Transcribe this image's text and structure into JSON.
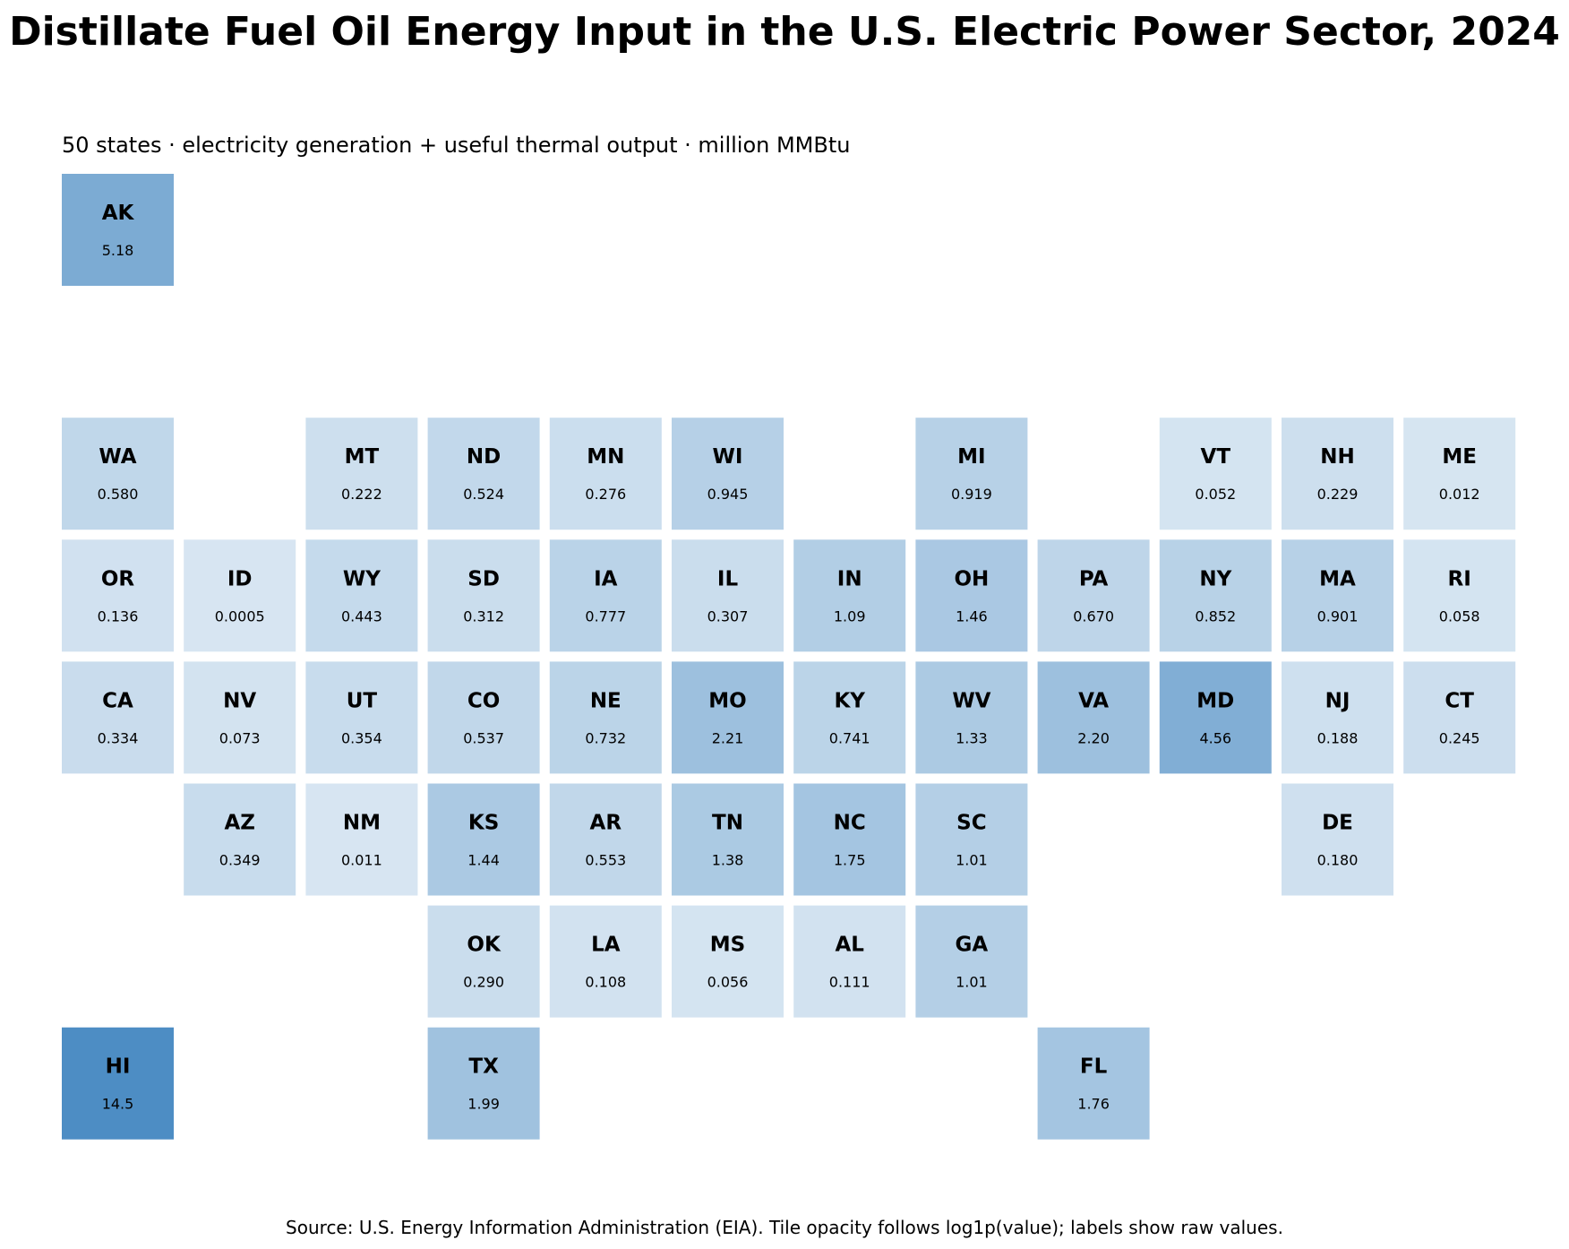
{
  "chart_data": {
    "type": "tile-map",
    "title": "Distillate Fuel Oil Energy Input in the U.S. Electric Power Sector, 2024",
    "subtitle": "50 states · electricity generation + useful thermal output · million MMBtu",
    "source": "Source: U.S. Energy Information Administration (EIA). Tile opacity follows log1p(value); labels show raw values.",
    "color": "#2171b5",
    "color_scale": "log1p",
    "tiles": [
      {
        "state": "AK",
        "value": 5.18,
        "label": "5.18",
        "col": 0,
        "row": 0
      },
      {
        "state": "WA",
        "value": 0.58,
        "label": "0.580",
        "col": 0,
        "row": 2
      },
      {
        "state": "MT",
        "value": 0.222,
        "label": "0.222",
        "col": 2,
        "row": 2
      },
      {
        "state": "ND",
        "value": 0.524,
        "label": "0.524",
        "col": 3,
        "row": 2
      },
      {
        "state": "MN",
        "value": 0.276,
        "label": "0.276",
        "col": 4,
        "row": 2
      },
      {
        "state": "WI",
        "value": 0.945,
        "label": "0.945",
        "col": 5,
        "row": 2
      },
      {
        "state": "MI",
        "value": 0.919,
        "label": "0.919",
        "col": 7,
        "row": 2
      },
      {
        "state": "VT",
        "value": 0.052,
        "label": "0.052",
        "col": 9,
        "row": 2
      },
      {
        "state": "NH",
        "value": 0.229,
        "label": "0.229",
        "col": 10,
        "row": 2
      },
      {
        "state": "ME",
        "value": 0.012,
        "label": "0.012",
        "col": 11,
        "row": 2
      },
      {
        "state": "OR",
        "value": 0.136,
        "label": "0.136",
        "col": 0,
        "row": 3
      },
      {
        "state": "ID",
        "value": 0.0005,
        "label": "0.0005",
        "col": 1,
        "row": 3
      },
      {
        "state": "WY",
        "value": 0.443,
        "label": "0.443",
        "col": 2,
        "row": 3
      },
      {
        "state": "SD",
        "value": 0.312,
        "label": "0.312",
        "col": 3,
        "row": 3
      },
      {
        "state": "IA",
        "value": 0.777,
        "label": "0.777",
        "col": 4,
        "row": 3
      },
      {
        "state": "IL",
        "value": 0.307,
        "label": "0.307",
        "col": 5,
        "row": 3
      },
      {
        "state": "IN",
        "value": 1.09,
        "label": "1.09",
        "col": 6,
        "row": 3
      },
      {
        "state": "OH",
        "value": 1.46,
        "label": "1.46",
        "col": 7,
        "row": 3
      },
      {
        "state": "PA",
        "value": 0.67,
        "label": "0.670",
        "col": 8,
        "row": 3
      },
      {
        "state": "NY",
        "value": 0.852,
        "label": "0.852",
        "col": 9,
        "row": 3
      },
      {
        "state": "MA",
        "value": 0.901,
        "label": "0.901",
        "col": 10,
        "row": 3
      },
      {
        "state": "RI",
        "value": 0.058,
        "label": "0.058",
        "col": 11,
        "row": 3
      },
      {
        "state": "CA",
        "value": 0.334,
        "label": "0.334",
        "col": 0,
        "row": 4
      },
      {
        "state": "NV",
        "value": 0.073,
        "label": "0.073",
        "col": 1,
        "row": 4
      },
      {
        "state": "UT",
        "value": 0.354,
        "label": "0.354",
        "col": 2,
        "row": 4
      },
      {
        "state": "CO",
        "value": 0.537,
        "label": "0.537",
        "col": 3,
        "row": 4
      },
      {
        "state": "NE",
        "value": 0.732,
        "label": "0.732",
        "col": 4,
        "row": 4
      },
      {
        "state": "MO",
        "value": 2.21,
        "label": "2.21",
        "col": 5,
        "row": 4
      },
      {
        "state": "KY",
        "value": 0.741,
        "label": "0.741",
        "col": 6,
        "row": 4
      },
      {
        "state": "WV",
        "value": 1.33,
        "label": "1.33",
        "col": 7,
        "row": 4
      },
      {
        "state": "VA",
        "value": 2.2,
        "label": "2.20",
        "col": 8,
        "row": 4
      },
      {
        "state": "MD",
        "value": 4.56,
        "label": "4.56",
        "col": 9,
        "row": 4
      },
      {
        "state": "NJ",
        "value": 0.188,
        "label": "0.188",
        "col": 10,
        "row": 4
      },
      {
        "state": "CT",
        "value": 0.245,
        "label": "0.245",
        "col": 11,
        "row": 4
      },
      {
        "state": "AZ",
        "value": 0.349,
        "label": "0.349",
        "col": 1,
        "row": 5
      },
      {
        "state": "NM",
        "value": 0.011,
        "label": "0.011",
        "col": 2,
        "row": 5
      },
      {
        "state": "KS",
        "value": 1.44,
        "label": "1.44",
        "col": 3,
        "row": 5
      },
      {
        "state": "AR",
        "value": 0.553,
        "label": "0.553",
        "col": 4,
        "row": 5
      },
      {
        "state": "TN",
        "value": 1.38,
        "label": "1.38",
        "col": 5,
        "row": 5
      },
      {
        "state": "NC",
        "value": 1.75,
        "label": "1.75",
        "col": 6,
        "row": 5
      },
      {
        "state": "SC",
        "value": 1.01,
        "label": "1.01",
        "col": 7,
        "row": 5
      },
      {
        "state": "DE",
        "value": 0.18,
        "label": "0.180",
        "col": 10,
        "row": 5
      },
      {
        "state": "OK",
        "value": 0.29,
        "label": "0.290",
        "col": 3,
        "row": 6
      },
      {
        "state": "LA",
        "value": 0.108,
        "label": "0.108",
        "col": 4,
        "row": 6
      },
      {
        "state": "MS",
        "value": 0.056,
        "label": "0.056",
        "col": 5,
        "row": 6
      },
      {
        "state": "AL",
        "value": 0.111,
        "label": "0.111",
        "col": 6,
        "row": 6
      },
      {
        "state": "GA",
        "value": 1.01,
        "label": "1.01",
        "col": 7,
        "row": 6
      },
      {
        "state": "HI",
        "value": 14.5,
        "label": "14.5",
        "col": 0,
        "row": 7
      },
      {
        "state": "TX",
        "value": 1.99,
        "label": "1.99",
        "col": 3,
        "row": 7
      },
      {
        "state": "FL",
        "value": 1.76,
        "label": "1.76",
        "col": 8,
        "row": 7
      }
    ]
  }
}
